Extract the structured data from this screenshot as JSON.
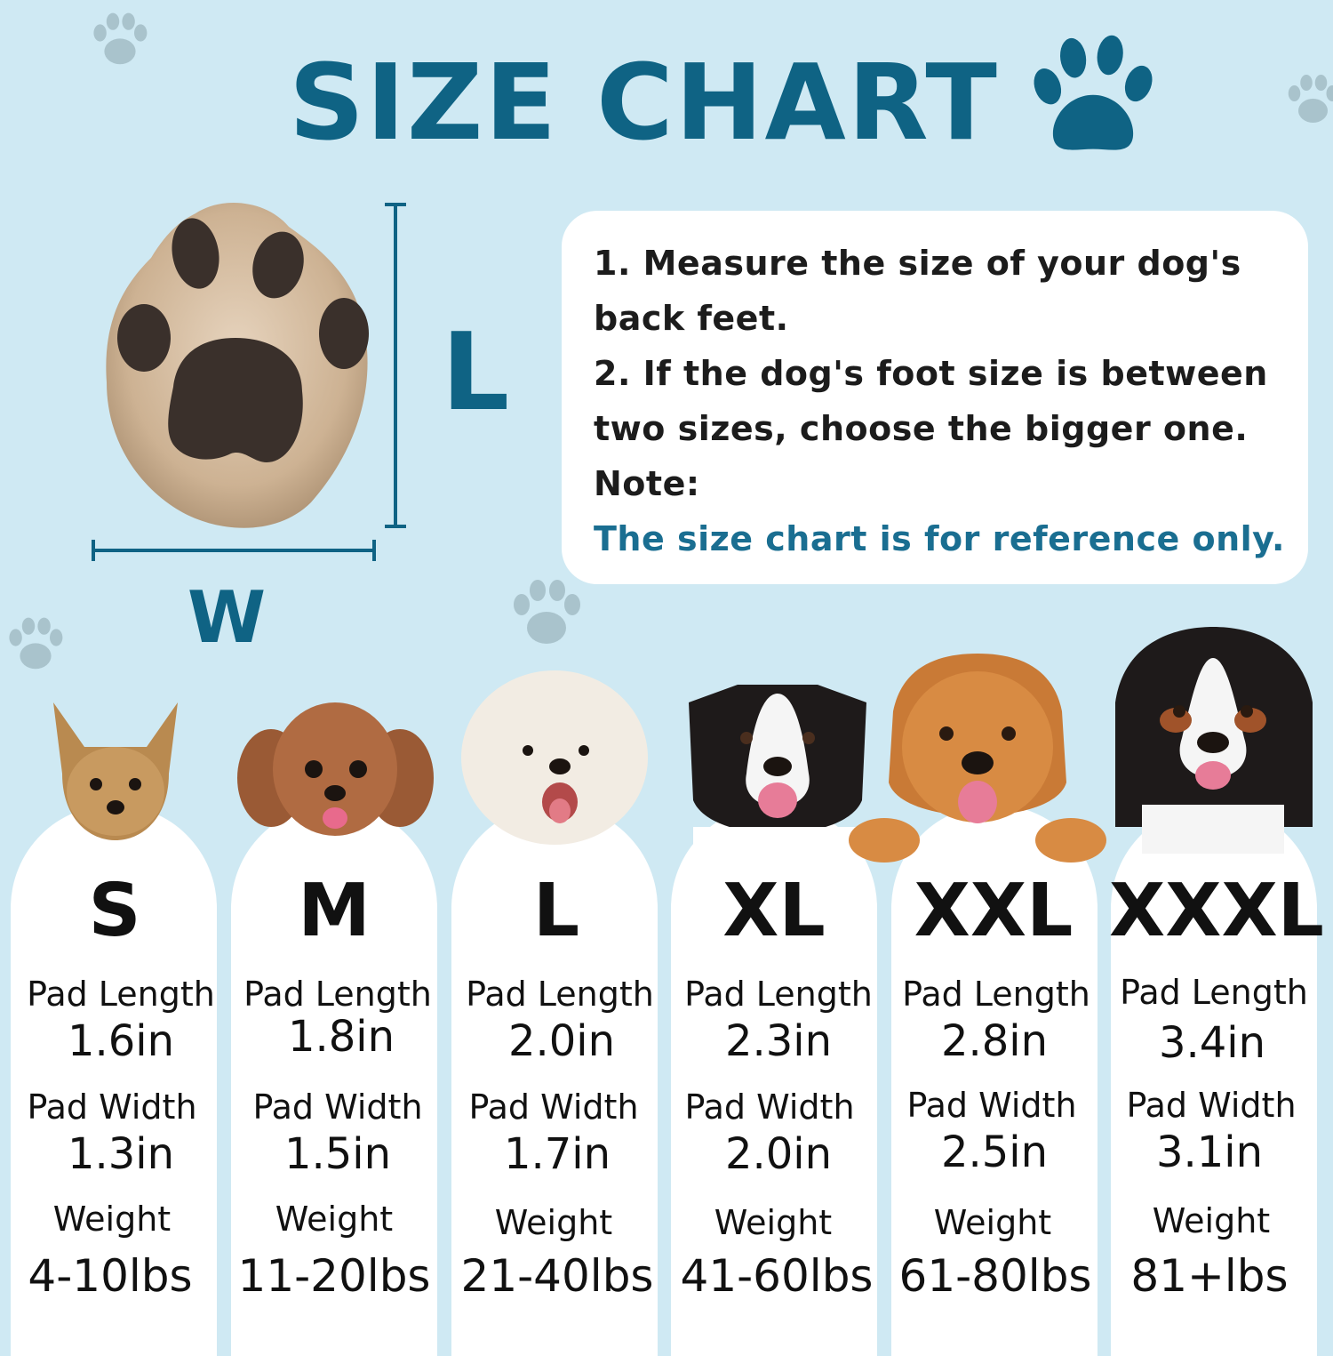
{
  "title": "SIZE CHART",
  "dimension_labels": {
    "length": "L",
    "width": "W"
  },
  "instructions": [
    "1. Measure the size of your dog's",
    "back feet.",
    "2. If the dog's foot size is between",
    "two sizes, choose the bigger one.",
    "Note:"
  ],
  "reference_note": "The size chart is for reference only.",
  "sizes": [
    {
      "size": "S",
      "pad_length_label": "Pad Length",
      "pad_length": "1.6in",
      "pad_width_label": "Pad Width",
      "pad_width": "1.3in",
      "weight_label": "Weight",
      "weight": "4-10lbs"
    },
    {
      "size": "M",
      "pad_length_label": "Pad Length",
      "pad_length": "1.8in",
      "pad_width_label": "Pad Width",
      "pad_width": "1.5in",
      "weight_label": "Weight",
      "weight": "11-20lbs"
    },
    {
      "size": "L",
      "pad_length_label": "Pad Length",
      "pad_length": "2.0in",
      "pad_width_label": "Pad Width",
      "pad_width": "1.7in",
      "weight_label": "Weight",
      "weight": "21-40lbs"
    },
    {
      "size": "XL",
      "pad_length_label": "Pad Length",
      "pad_length": "2.3in",
      "pad_width_label": "Pad Width",
      "pad_width": "2.0in",
      "weight_label": "Weight",
      "weight": "41-60lbs"
    },
    {
      "size": "XXL",
      "pad_length_label": "Pad Length",
      "pad_length": "2.8in",
      "pad_width_label": "Pad Width",
      "pad_width": "2.5in",
      "weight_label": "Weight",
      "weight": "61-80lbs"
    },
    {
      "size": "XXXL",
      "pad_length_label": "Pad Length",
      "pad_length": "3.4in",
      "pad_width_label": "Pad Width",
      "pad_width": "3.1in",
      "weight_label": "Weight",
      "weight": "81+lbs"
    }
  ],
  "colors": {
    "background": "#cfe9f3",
    "accent": "#0f6384",
    "reference_text": "#1a6e91",
    "card": "#ffffff"
  }
}
